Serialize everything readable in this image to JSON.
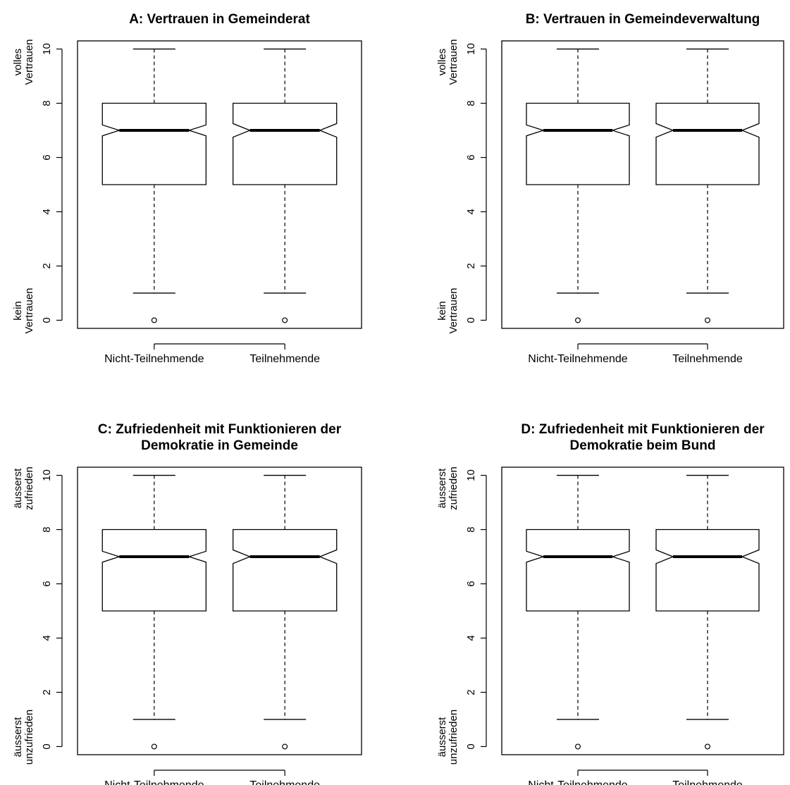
{
  "chart_data": [
    {
      "type": "boxplot",
      "title": [
        "A: Vertrauen in Gemeinderat"
      ],
      "categories": [
        "Nicht-Teilnehmende",
        "Teilnehmende"
      ],
      "boxes": [
        {
          "min": 1,
          "q1": 5,
          "median": 7,
          "q3": 8,
          "max": 10,
          "notch_low": 6.8,
          "notch_high": 7.2,
          "outliers": [
            0
          ]
        },
        {
          "min": 1,
          "q1": 5,
          "median": 7,
          "q3": 8,
          "max": 10,
          "notch_low": 6.75,
          "notch_high": 7.25,
          "outliers": [
            0
          ]
        }
      ],
      "ylim": [
        -0.3,
        10.3
      ],
      "yticks": [
        "0",
        "2",
        "4",
        "6",
        "8",
        "10"
      ],
      "y_top_label": [
        "volles",
        "Vertrauen"
      ],
      "y_bottom_label": [
        "kein",
        "Vertrauen"
      ],
      "notched": true,
      "grid": false
    },
    {
      "type": "boxplot",
      "title": [
        "B: Vertrauen in Gemeindeverwaltung"
      ],
      "categories": [
        "Nicht-Teilnehmende",
        "Teilnehmende"
      ],
      "boxes": [
        {
          "min": 1,
          "q1": 5,
          "median": 7,
          "q3": 8,
          "max": 10,
          "notch_low": 6.8,
          "notch_high": 7.2,
          "outliers": [
            0
          ]
        },
        {
          "min": 1,
          "q1": 5,
          "median": 7,
          "q3": 8,
          "max": 10,
          "notch_low": 6.75,
          "notch_high": 7.25,
          "outliers": [
            0
          ]
        }
      ],
      "ylim": [
        -0.3,
        10.3
      ],
      "yticks": [
        "0",
        "2",
        "4",
        "6",
        "8",
        "10"
      ],
      "y_top_label": [
        "volles",
        "Vertrauen"
      ],
      "y_bottom_label": [
        "kein",
        "Vertrauen"
      ],
      "notched": true,
      "grid": false
    },
    {
      "type": "boxplot",
      "title": [
        "C: Zufriedenheit mit Funktionieren der",
        "Demokratie in Gemeinde"
      ],
      "categories": [
        "Nicht-Teilnehmende",
        "Teilnehmende"
      ],
      "boxes": [
        {
          "min": 1,
          "q1": 5,
          "median": 7,
          "q3": 8,
          "max": 10,
          "notch_low": 6.8,
          "notch_high": 7.2,
          "outliers": [
            0
          ]
        },
        {
          "min": 1,
          "q1": 5,
          "median": 7,
          "q3": 8,
          "max": 10,
          "notch_low": 6.75,
          "notch_high": 7.25,
          "outliers": [
            0
          ]
        }
      ],
      "ylim": [
        -0.3,
        10.3
      ],
      "yticks": [
        "0",
        "2",
        "4",
        "6",
        "8",
        "10"
      ],
      "y_top_label": [
        "äusserst",
        "zufrieden"
      ],
      "y_bottom_label": [
        "äusserst",
        "unzufrieden"
      ],
      "notched": true,
      "grid": false
    },
    {
      "type": "boxplot",
      "title": [
        "D: Zufriedenheit mit Funktionieren der",
        "Demokratie beim Bund"
      ],
      "categories": [
        "Nicht-Teilnehmende",
        "Teilnehmende"
      ],
      "boxes": [
        {
          "min": 1,
          "q1": 5,
          "median": 7,
          "q3": 8,
          "max": 10,
          "notch_low": 6.8,
          "notch_high": 7.2,
          "outliers": [
            0
          ]
        },
        {
          "min": 1,
          "q1": 5,
          "median": 7,
          "q3": 8,
          "max": 10,
          "notch_low": 6.75,
          "notch_high": 7.25,
          "outliers": [
            0
          ]
        }
      ],
      "ylim": [
        -0.3,
        10.3
      ],
      "yticks": [
        "0",
        "2",
        "4",
        "6",
        "8",
        "10"
      ],
      "y_top_label": [
        "äusserst",
        "zufrieden"
      ],
      "y_bottom_label": [
        "äusserst",
        "unzufrieden"
      ],
      "notched": true,
      "grid": false
    }
  ]
}
